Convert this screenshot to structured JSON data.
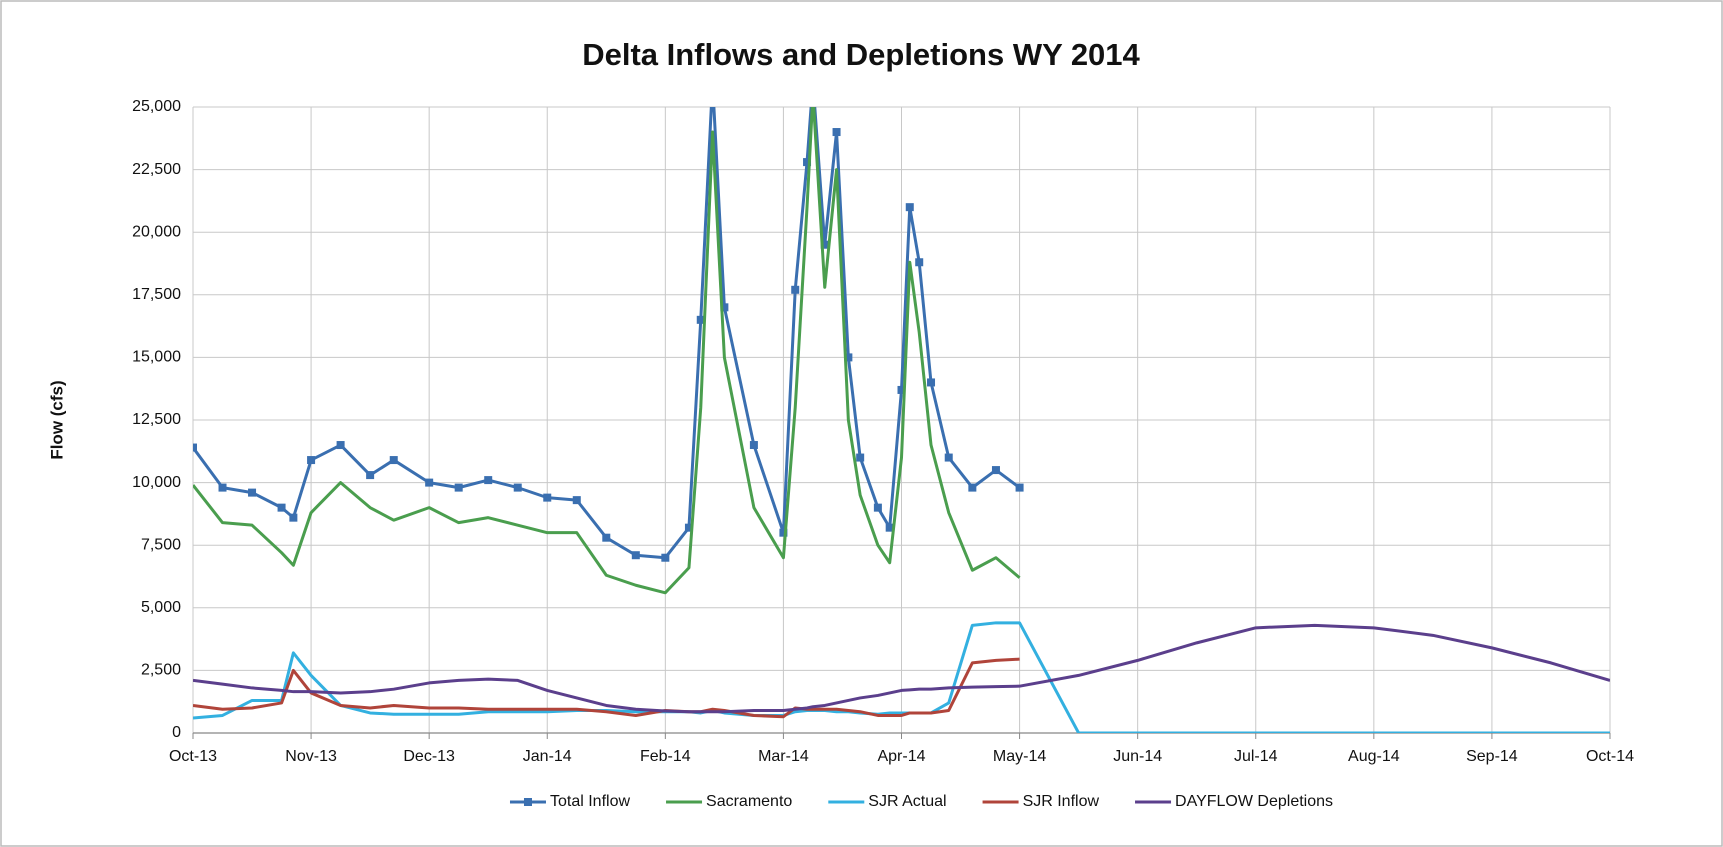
{
  "chart_data": {
    "type": "line",
    "title": "Delta Inflows and Depletions WY 2014",
    "y_label": "Flow (cfs)",
    "x": [
      0,
      0.25,
      0.5,
      0.75,
      0.85,
      1,
      1.25,
      1.5,
      1.7,
      2,
      2.25,
      2.5,
      2.75,
      3,
      3.25,
      3.5,
      3.75,
      4,
      4.2,
      4.3,
      4.4,
      4.5,
      4.75,
      5,
      5.1,
      5.2,
      5.25,
      5.35,
      5.45,
      5.55,
      5.65,
      5.8,
      5.9,
      6,
      6.07,
      6.15,
      6.25,
      6.4,
      6.6,
      6.8,
      7,
      7.5,
      8,
      8.5,
      9,
      9.5,
      10,
      10.5,
      11,
      11.5,
      12
    ],
    "xlim": [
      0,
      12
    ],
    "xticks": [
      {
        "value": 0,
        "label": "Oct-13"
      },
      {
        "value": 1,
        "label": "Nov-13"
      },
      {
        "value": 2,
        "label": "Dec-13"
      },
      {
        "value": 3,
        "label": "Jan-14"
      },
      {
        "value": 4,
        "label": "Feb-14"
      },
      {
        "value": 5,
        "label": "Mar-14"
      },
      {
        "value": 6,
        "label": "Apr-14"
      },
      {
        "value": 7,
        "label": "May-14"
      },
      {
        "value": 8,
        "label": "Jun-14"
      },
      {
        "value": 9,
        "label": "Jul-14"
      },
      {
        "value": 10,
        "label": "Aug-14"
      },
      {
        "value": 11,
        "label": "Sep-14"
      },
      {
        "value": 12,
        "label": "Oct-14"
      }
    ],
    "ylim": [
      0,
      25000
    ],
    "yticks": [
      0,
      {
        "value": 2500,
        "label": "2,500"
      },
      {
        "value": 5000,
        "label": "5,000"
      },
      {
        "value": 7500,
        "label": "7,500"
      },
      {
        "value": 10000,
        "label": "10,000"
      },
      {
        "value": 12500,
        "label": "12,500"
      },
      {
        "value": 15000,
        "label": "15,000"
      },
      {
        "value": 17500,
        "label": "17,500"
      },
      {
        "value": 20000,
        "label": "20,000"
      },
      {
        "value": 22500,
        "label": "22,500"
      },
      {
        "value": 25000,
        "label": "25,000"
      }
    ],
    "grid": true,
    "legend": "bottom",
    "series": [
      {
        "name": "Total Inflow",
        "color": "#3a6fb0",
        "marker": "square",
        "values": [
          11400,
          9800,
          9600,
          9000,
          8600,
          10900,
          11500,
          10300,
          10900,
          10000,
          9800,
          10100,
          9800,
          9400,
          9300,
          7800,
          7100,
          7000,
          8200,
          16500,
          26000,
          17000,
          11500,
          8000,
          17700,
          22800,
          26000,
          19500,
          24000,
          15000,
          11000,
          9000,
          8200,
          13700,
          21000,
          18800,
          14000,
          11000,
          9800,
          10500,
          9800,
          null,
          null,
          null,
          null,
          null,
          null,
          null,
          null,
          null,
          null
        ]
      },
      {
        "name": "Sacramento",
        "color": "#4a9e4e",
        "values": [
          9900,
          8400,
          8300,
          7200,
          6700,
          8800,
          10000,
          9000,
          8500,
          9000,
          8400,
          8600,
          8300,
          8000,
          8000,
          6300,
          5900,
          5600,
          6600,
          13000,
          24000,
          15000,
          9000,
          7000,
          13000,
          21000,
          25500,
          17800,
          22500,
          12500,
          9500,
          7500,
          6800,
          11000,
          18800,
          16000,
          11500,
          8800,
          6500,
          7000,
          6200,
          null,
          null,
          null,
          null,
          null,
          null,
          null,
          null,
          null,
          null
        ]
      },
      {
        "name": "SJR Actual",
        "color": "#33b0e0",
        "values": [
          600,
          700,
          1300,
          1300,
          3200,
          2300,
          1100,
          800,
          750,
          750,
          750,
          850,
          850,
          850,
          900,
          900,
          850,
          850,
          850,
          800,
          900,
          800,
          700,
          700,
          850,
          900,
          900,
          900,
          850,
          850,
          800,
          750,
          800,
          800,
          800,
          800,
          800,
          1200,
          4300,
          4400,
          4400,
          0,
          0,
          0,
          0,
          0,
          0,
          0,
          0,
          0,
          0
        ]
      },
      {
        "name": "SJR Inflow",
        "color": "#b0443a",
        "values": [
          1100,
          950,
          1000,
          1200,
          2500,
          1600,
          1100,
          1000,
          1100,
          1000,
          1000,
          950,
          950,
          950,
          950,
          850,
          700,
          900,
          850,
          850,
          950,
          900,
          700,
          650,
          1000,
          950,
          950,
          950,
          950,
          900,
          850,
          700,
          700,
          700,
          800,
          800,
          800,
          900,
          2800,
          2900,
          2950,
          null,
          null,
          null,
          null,
          null,
          null,
          null,
          null,
          null,
          null
        ]
      },
      {
        "name": "DAYFLOW Depletions",
        "color": "#5b3f8c",
        "values": [
          2100,
          1950,
          1800,
          1700,
          1650,
          1650,
          1600,
          1650,
          1750,
          2000,
          2100,
          2150,
          2100,
          1700,
          1400,
          1100,
          950,
          880,
          850,
          850,
          850,
          850,
          900,
          900,
          950,
          1000,
          1050,
          1100,
          1200,
          1300,
          1400,
          1500,
          1600,
          1700,
          1720,
          1750,
          1750,
          1800,
          1830,
          1850,
          1870,
          2300,
          2900,
          3600,
          4200,
          4300,
          4200,
          3900,
          3400,
          2800,
          2100
        ]
      }
    ]
  }
}
